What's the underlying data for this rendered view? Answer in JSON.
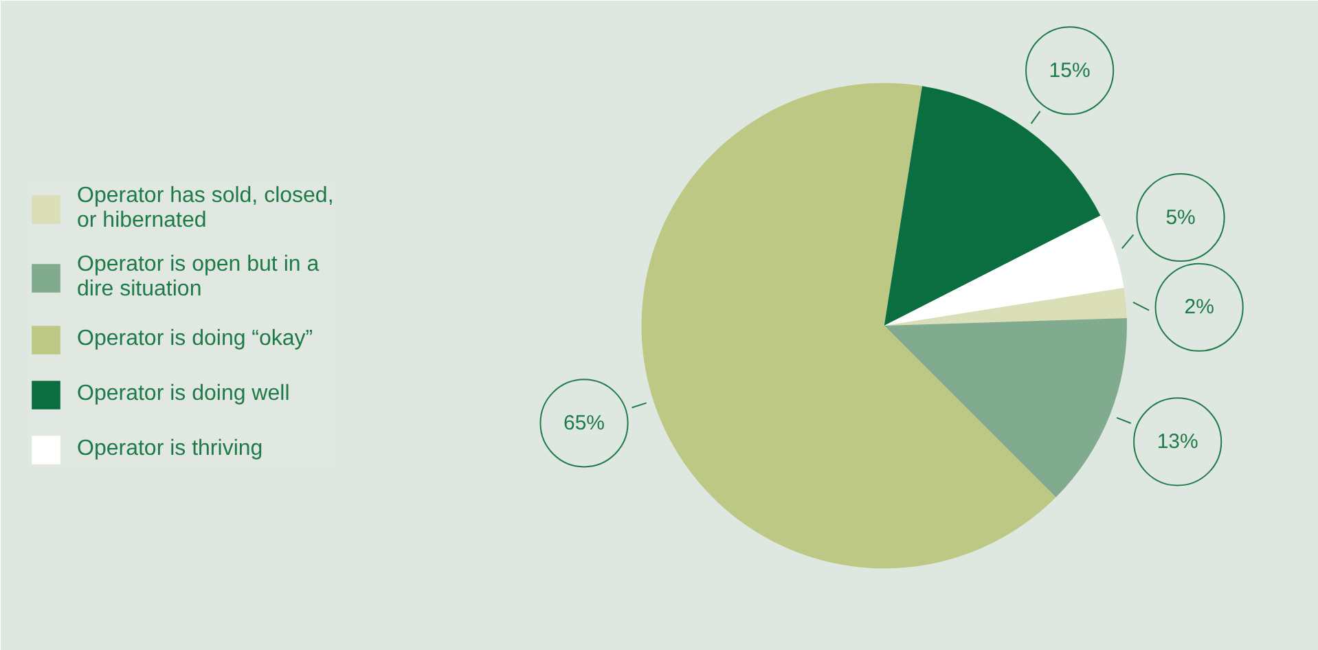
{
  "chart_data": {
    "type": "pie",
    "categories": [
      "Operator has sold, closed, or hibernated",
      "Operator is open but in a dire situation",
      "Operator is doing “okay”",
      "Operator is doing well",
      "Operator is thriving"
    ],
    "values": [
      2,
      13,
      65,
      15,
      5
    ],
    "value_labels": [
      "2%",
      "13%",
      "65%",
      "15%",
      "5%"
    ],
    "colors": [
      "#dbdfb8",
      "#80ab8e",
      "#bcc883",
      "#0a6e40",
      "#ffffff"
    ],
    "legend": "left"
  }
}
